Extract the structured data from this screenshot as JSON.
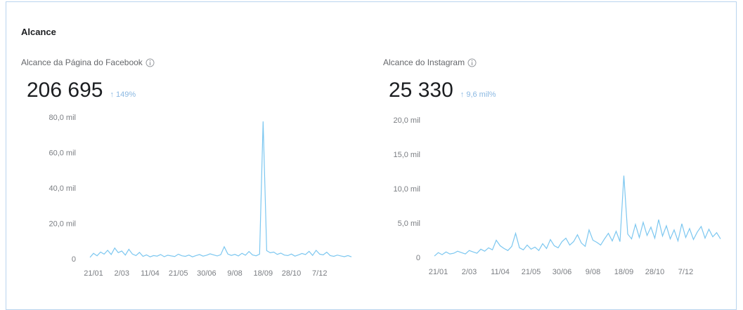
{
  "title": "Alcance",
  "chart_data": [
    {
      "type": "line",
      "title": "Alcance da Página do Facebook",
      "total": "206 695",
      "change": "↑ 149%",
      "color": "#7cc7f0",
      "categories": [
        null,
        "21/01",
        null,
        null,
        null,
        null,
        null,
        null,
        null,
        "2/03",
        null,
        null,
        null,
        null,
        null,
        null,
        null,
        "11/04",
        null,
        null,
        null,
        null,
        null,
        null,
        null,
        "21/05",
        null,
        null,
        null,
        null,
        null,
        null,
        null,
        "30/06",
        null,
        null,
        null,
        null,
        null,
        null,
        null,
        "9/08",
        null,
        null,
        null,
        null,
        null,
        null,
        null,
        "18/09",
        null,
        null,
        null,
        null,
        null,
        null,
        null,
        "28/10",
        null,
        null,
        null,
        null,
        null,
        null,
        null,
        "7/12",
        null,
        null,
        null,
        null,
        null,
        null,
        null,
        null,
        null
      ],
      "values": [
        1200,
        3500,
        2100,
        4200,
        3000,
        5200,
        2800,
        6500,
        3900,
        4800,
        2500,
        5800,
        3100,
        2200,
        4000,
        1800,
        2600,
        1500,
        2200,
        1900,
        2800,
        1600,
        2400,
        2000,
        1700,
        3000,
        2100,
        1800,
        2500,
        1500,
        2200,
        2800,
        1900,
        2400,
        3200,
        2600,
        2000,
        2700,
        7200,
        3100,
        2300,
        2900,
        2000,
        3500,
        2400,
        4500,
        2600,
        2100,
        3000,
        78000,
        5000,
        3800,
        4200,
        2900,
        3600,
        2500,
        2200,
        3100,
        1900,
        2600,
        3400,
        2800,
        4600,
        2300,
        5200,
        3000,
        2600,
        4100,
        2200,
        1800,
        2500,
        2000,
        1600,
        2200,
        1500
      ],
      "ylim": [
        0,
        80000
      ],
      "yticks": [
        0,
        {
          "value": 20000,
          "label": "20,0 mil"
        },
        {
          "value": 40000,
          "label": "40,0 mil"
        },
        {
          "value": 60000,
          "label": "60,0 mil"
        },
        {
          "value": 80000,
          "label": "80,0 mil"
        }
      ]
    },
    {
      "type": "line",
      "title": "Alcance do Instagram",
      "total": "25 330",
      "change": "↑ 9,6 mil%",
      "color": "#7cc7f0",
      "categories": [
        null,
        "21/01",
        null,
        null,
        null,
        null,
        null,
        null,
        null,
        "2/03",
        null,
        null,
        null,
        null,
        null,
        null,
        null,
        "11/04",
        null,
        null,
        null,
        null,
        null,
        null,
        null,
        "21/05",
        null,
        null,
        null,
        null,
        null,
        null,
        null,
        "30/06",
        null,
        null,
        null,
        null,
        null,
        null,
        null,
        "9/08",
        null,
        null,
        null,
        null,
        null,
        null,
        null,
        "18/09",
        null,
        null,
        null,
        null,
        null,
        null,
        null,
        "28/10",
        null,
        null,
        null,
        null,
        null,
        null,
        null,
        "7/12",
        null,
        null,
        null,
        null,
        null,
        null,
        null,
        null,
        null
      ],
      "values": [
        300,
        800,
        500,
        900,
        600,
        700,
        1000,
        800,
        600,
        1100,
        900,
        700,
        1300,
        1000,
        1500,
        1200,
        2600,
        1800,
        1400,
        1100,
        1700,
        3600,
        1500,
        1200,
        1900,
        1300,
        1600,
        1100,
        2100,
        1400,
        2700,
        1800,
        1500,
        2400,
        2900,
        1900,
        2400,
        3400,
        2200,
        1700,
        4100,
        2600,
        2300,
        1900,
        2800,
        3600,
        2500,
        3900,
        2400,
        12000,
        3500,
        2800,
        4900,
        3000,
        5200,
        3300,
        4500,
        2900,
        5600,
        3200,
        4700,
        2800,
        4100,
        2500,
        5000,
        3000,
        4300,
        2700,
        3800,
        4600,
        2900,
        4200,
        3100,
        3700,
        2800
      ],
      "ylim": [
        0,
        20000
      ],
      "yticks": [
        0,
        {
          "value": 5000,
          "label": "5,0 mil"
        },
        {
          "value": 10000,
          "label": "10,0 mil"
        },
        {
          "value": 15000,
          "label": "15,0 mil"
        },
        {
          "value": 20000,
          "label": "20,0 mil"
        }
      ]
    }
  ]
}
